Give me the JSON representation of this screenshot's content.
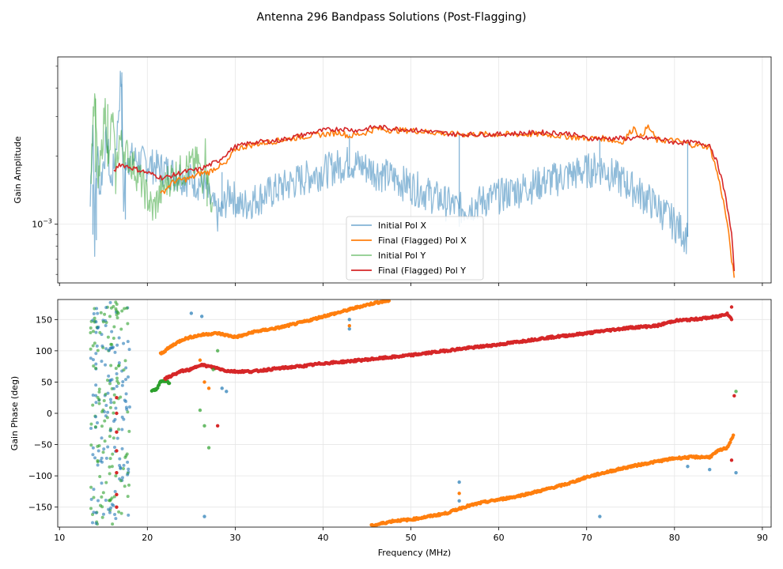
{
  "chart_data": {
    "type": "line",
    "title": "Antenna 296 Bandpass Solutions (Post-Flagging)",
    "xlabel": "Frequency (MHz)",
    "xlim": [
      9.8,
      91
    ],
    "x_ticks": [
      10,
      20,
      30,
      40,
      50,
      60,
      70,
      80,
      90
    ],
    "colors": {
      "initial_x": "#1f77b4",
      "final_x": "#ff7f0e",
      "initial_y": "#2ca02c",
      "final_y": "#d62728"
    },
    "amplitude_panel": {
      "ylabel": "Gain Amplitude",
      "yscale": "log",
      "ylim": [
        0.00055,
        0.0055
      ],
      "major_tick_label": "10^-3",
      "major_tick_value": 0.001,
      "minor_ticks": [
        0.0006,
        0.0007,
        0.0008,
        0.0009,
        0.002,
        0.003,
        0.004,
        0.005
      ],
      "legend": {
        "position": "lower-center",
        "entries": [
          "Initial Pol X",
          "Final (Flagged) Pol X",
          "Initial Pol Y",
          "Final (Flagged) Pol Y"
        ]
      },
      "series": [
        {
          "name": "Final (Flagged) Pol X",
          "key": "final_x",
          "x": [
            21.5,
            23,
            25,
            26,
            27,
            28,
            29,
            30,
            32,
            35,
            38,
            40,
            42,
            43,
            45,
            46,
            48,
            50,
            55,
            60,
            65,
            70,
            72,
            74,
            75.5,
            76,
            77,
            78,
            80,
            82,
            84,
            85,
            86,
            86.5,
            86.8
          ],
          "y": [
            0.00135,
            0.00155,
            0.0016,
            0.00168,
            0.0017,
            0.0018,
            0.00185,
            0.00215,
            0.00225,
            0.00235,
            0.00245,
            0.0025,
            0.00255,
            0.00245,
            0.00255,
            0.00265,
            0.0026,
            0.0026,
            0.0025,
            0.0025,
            0.0025,
            0.0024,
            0.0024,
            0.0023,
            0.0027,
            0.0024,
            0.0027,
            0.00235,
            0.00235,
            0.00225,
            0.0022,
            0.0016,
            0.001,
            0.0007,
            0.00058
          ]
        },
        {
          "name": "Final (Flagged) Pol Y",
          "key": "final_y",
          "x": [
            16.2,
            16.8,
            21.8,
            23,
            24,
            26,
            28,
            30,
            32,
            35,
            38,
            40,
            42,
            44,
            46,
            48,
            50,
            55,
            60,
            65,
            68,
            70,
            72,
            75,
            78,
            80,
            82,
            84,
            85,
            86,
            86.5,
            86.8
          ],
          "y": [
            0.0017,
            0.00185,
            0.0016,
            0.00165,
            0.0017,
            0.00175,
            0.0019,
            0.0022,
            0.0023,
            0.00235,
            0.0025,
            0.0026,
            0.00265,
            0.0026,
            0.0027,
            0.00265,
            0.00262,
            0.0025,
            0.0025,
            0.00255,
            0.00252,
            0.0024,
            0.0024,
            0.0024,
            0.0024,
            0.0023,
            0.0023,
            0.00225,
            0.0018,
            0.0012,
            0.0009,
            0.00062
          ]
        },
        {
          "name": "Initial Pol X",
          "key": "initial_x",
          "x": [
            13.5,
            13.8,
            14.0,
            14.3,
            14.6,
            15.0,
            15.4,
            15.8,
            16.2,
            16.6,
            17.0,
            17.3,
            17.6,
            26.5,
            27,
            27.5,
            28,
            28.5,
            29,
            29.5,
            30.5,
            43,
            55.5,
            71.5,
            81.5
          ],
          "y": [
            0.0012,
            0.0028,
            0.00085,
            0.0022,
            0.0014,
            0.0019,
            0.0024,
            0.0015,
            0.0018,
            0.0026,
            0.0045,
            0.0011,
            0.002,
            0.0015,
            0.0013,
            0.0012,
            0.0011,
            0.00115,
            0.0013,
            0.0014,
            0.0012,
            0.0019,
            0.00117,
            0.0018,
            0.00088
          ]
        },
        {
          "name": "Initial Pol Y",
          "key": "initial_y",
          "x": [
            13.6,
            14.0,
            14.4,
            14.8,
            15.2,
            15.6,
            16.0,
            16.4,
            16.8,
            17.2,
            20.6,
            21.2,
            21.8,
            22.4,
            25.8,
            26.2,
            26.6,
            27,
            27.4
          ],
          "y": [
            0.0018,
            0.0035,
            0.0014,
            0.0021,
            0.0033,
            0.0017,
            0.0031,
            0.0016,
            0.0024,
            0.0022,
            0.00115,
            0.0013,
            0.00145,
            0.0016,
            0.0019,
            0.0015,
            0.0021,
            0.0014,
            0.00125
          ]
        }
      ],
      "spikes": [
        {
          "key": "initial_x",
          "x": 13.8,
          "y0": 0.0015,
          "y1": 0.0009
        },
        {
          "key": "initial_x",
          "x": 14.2,
          "y0": 0.0016,
          "y1": 0.00085
        },
        {
          "key": "initial_x",
          "x": 17.1,
          "y0": 0.0022,
          "y1": 0.0047
        },
        {
          "key": "initial_x",
          "x": 17.5,
          "y0": 0.0018,
          "y1": 0.00105
        },
        {
          "key": "initial_x",
          "x": 28.5,
          "y0": 0.0017,
          "y1": 0.00108
        },
        {
          "key": "initial_x",
          "x": 43,
          "y0": 0.0025,
          "y1": 0.00175
        },
        {
          "key": "initial_x",
          "x": 55.5,
          "y0": 0.0025,
          "y1": 0.00117
        },
        {
          "key": "initial_x",
          "x": 71.5,
          "y0": 0.0024,
          "y1": 0.0018
        },
        {
          "key": "initial_x",
          "x": 81.5,
          "y0": 0.0023,
          "y1": 0.00088
        },
        {
          "key": "initial_y",
          "x": 14.1,
          "y0": 0.0017,
          "y1": 0.0036
        },
        {
          "key": "initial_y",
          "x": 15.5,
          "y0": 0.0018,
          "y1": 0.0034
        },
        {
          "key": "initial_y",
          "x": 26.8,
          "y0": 0.0017,
          "y1": 0.0012
        }
      ]
    },
    "phase_panel": {
      "ylabel": "Gain Phase (deg)",
      "ylim": [
        -182,
        182
      ],
      "y_ticks": [
        -150,
        -100,
        -50,
        0,
        50,
        100,
        150
      ],
      "series": [
        {
          "name": "Final (Flagged) Pol X (branch 1)",
          "key": "final_x",
          "x": [
            21.5,
            23,
            24,
            25,
            26,
            27,
            28,
            29,
            30,
            31,
            32,
            35,
            38,
            40,
            42,
            44,
            46,
            47.5
          ],
          "y": [
            95,
            110,
            118,
            122,
            125,
            127,
            128,
            125,
            122,
            125,
            130,
            137,
            147,
            155,
            162,
            170,
            177,
            180
          ]
        },
        {
          "name": "Final (Flagged) Pol X (branch 2)",
          "key": "final_x",
          "x": [
            45.5,
            48,
            50,
            52,
            54,
            56,
            58,
            60,
            62,
            65,
            68,
            70,
            72,
            75,
            78,
            80,
            82,
            84,
            85,
            86,
            86.7
          ],
          "y": [
            -180,
            -172,
            -170,
            -165,
            -160,
            -150,
            -143,
            -138,
            -133,
            -123,
            -112,
            -102,
            -95,
            -85,
            -77,
            -72,
            -70,
            -70,
            -60,
            -55,
            -35
          ]
        },
        {
          "name": "Final (Flagged) Pol Y",
          "key": "final_y",
          "x": [
            22,
            23,
            24,
            25,
            26,
            27,
            28,
            29,
            30,
            32,
            35,
            38,
            40,
            42,
            45,
            48,
            50,
            55,
            60,
            65,
            70,
            72,
            75,
            78,
            80,
            82,
            84,
            85,
            86,
            86.5
          ],
          "y": [
            55,
            62,
            68,
            70,
            78,
            75,
            72,
            68,
            67,
            67,
            72,
            76,
            80,
            82,
            86,
            90,
            93,
            102,
            110,
            120,
            128,
            132,
            137,
            140,
            148,
            150,
            153,
            155,
            160,
            150
          ]
        },
        {
          "name": "Initial Pol Y (green segment)",
          "key": "initial_y",
          "x": [
            20.5,
            21,
            21.5,
            22,
            22.5
          ],
          "y": [
            35,
            38,
            50,
            52,
            48
          ]
        }
      ],
      "scatter_band": {
        "x_from": 13.5,
        "x_to": 18.0,
        "y_from": -178,
        "y_to": 178
      },
      "scatter_points": [
        {
          "key": "initial_x",
          "x": 25,
          "y": 160
        },
        {
          "key": "initial_x",
          "x": 26.2,
          "y": 155
        },
        {
          "key": "initial_x",
          "x": 26.5,
          "y": -165
        },
        {
          "key": "initial_x",
          "x": 28.5,
          "y": 40
        },
        {
          "key": "initial_x",
          "x": 29,
          "y": 35
        },
        {
          "key": "initial_x",
          "x": 43,
          "y": 150
        },
        {
          "key": "initial_x",
          "x": 43,
          "y": 135
        },
        {
          "key": "initial_x",
          "x": 55.5,
          "y": -110
        },
        {
          "key": "initial_x",
          "x": 55.5,
          "y": -140
        },
        {
          "key": "initial_x",
          "x": 71.5,
          "y": -165
        },
        {
          "key": "initial_x",
          "x": 81.5,
          "y": -85
        },
        {
          "key": "initial_x",
          "x": 84,
          "y": -90
        },
        {
          "key": "initial_x",
          "x": 87,
          "y": -95
        },
        {
          "key": "initial_y",
          "x": 26,
          "y": 5
        },
        {
          "key": "initial_y",
          "x": 26.5,
          "y": -20
        },
        {
          "key": "initial_y",
          "x": 27,
          "y": -55
        },
        {
          "key": "initial_y",
          "x": 27.5,
          "y": 70
        },
        {
          "key": "initial_y",
          "x": 28,
          "y": 100
        },
        {
          "key": "initial_y",
          "x": 87,
          "y": 35
        },
        {
          "key": "final_y",
          "x": 16.5,
          "y": 0
        },
        {
          "key": "final_y",
          "x": 16.5,
          "y": -30
        },
        {
          "key": "final_y",
          "x": 16.5,
          "y": -60
        },
        {
          "key": "final_y",
          "x": 16.5,
          "y": -95
        },
        {
          "key": "final_y",
          "x": 16.5,
          "y": -130
        },
        {
          "key": "final_y",
          "x": 16.5,
          "y": -150
        },
        {
          "key": "final_y",
          "x": 16.5,
          "y": 25
        },
        {
          "key": "final_y",
          "x": 28,
          "y": -20
        },
        {
          "key": "final_y",
          "x": 86.5,
          "y": 170
        },
        {
          "key": "final_y",
          "x": 86.8,
          "y": 28
        },
        {
          "key": "final_y",
          "x": 86.5,
          "y": -75
        },
        {
          "key": "final_x",
          "x": 26.5,
          "y": 50
        },
        {
          "key": "final_x",
          "x": 27,
          "y": 40
        },
        {
          "key": "final_x",
          "x": 26,
          "y": 85
        },
        {
          "key": "final_x",
          "x": 43,
          "y": 140
        },
        {
          "key": "final_x",
          "x": 55.5,
          "y": -128
        }
      ]
    }
  }
}
